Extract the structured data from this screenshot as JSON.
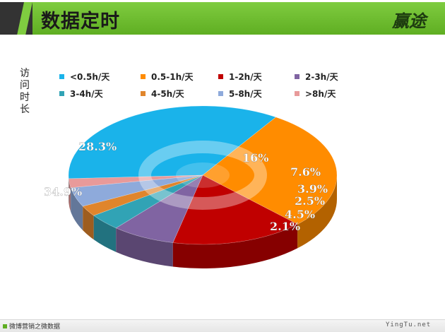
{
  "header": {
    "title": "数据定时",
    "logo": "赢途"
  },
  "footer": {
    "left": "微博营销之微数据",
    "right": "YingTu.net"
  },
  "chart_data": {
    "type": "pie",
    "ylabel": "访问时长",
    "categories": [
      "<0.5h/天",
      "0.5-1h/天",
      "1-2h/天",
      "2-3h/天",
      "3-4h/天",
      "4-5h/天",
      "5-8h/天",
      ">8h/天"
    ],
    "values": [
      34.9,
      28.3,
      16,
      7.6,
      3.9,
      2.5,
      4.5,
      2.1
    ],
    "labels": [
      "34.9%",
      "28.3%",
      "16%",
      "7.6%",
      "3.9%",
      "2.5%",
      "4.5%",
      "2.1%"
    ],
    "colors": [
      "#1ab3ea",
      "#ff8c00",
      "#c00000",
      "#8064a2",
      "#31a3b5",
      "#e0852c",
      "#8eaadb",
      "#e89a9a"
    ],
    "legend_position": "top"
  }
}
